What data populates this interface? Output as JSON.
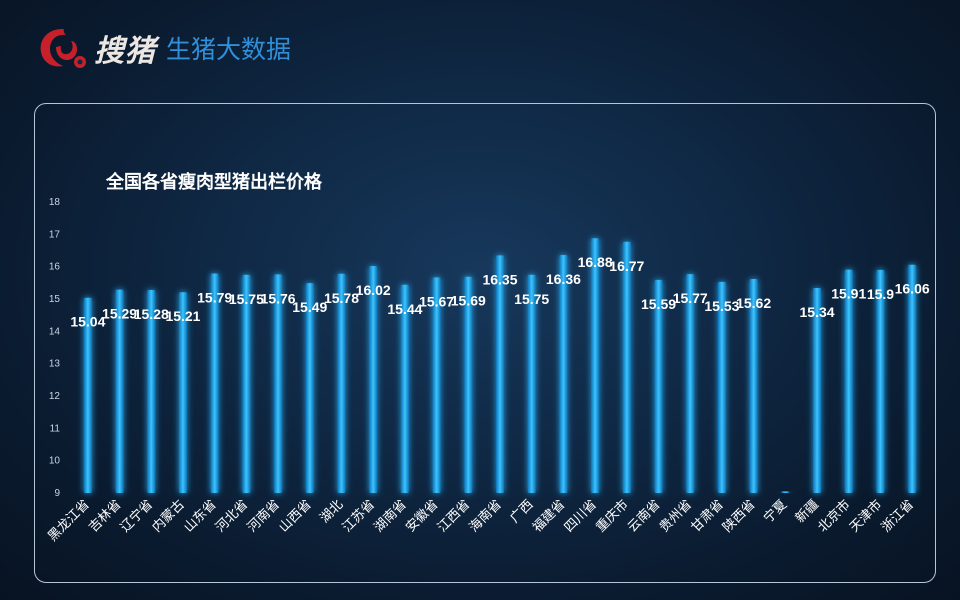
{
  "brand": {
    "name": "搜猪",
    "subtitle": "生猪大数据"
  },
  "colors": {
    "bar": "#1aa8f0",
    "label": "#ffffff",
    "tick": "#c8d6e6",
    "accent": "#2f8fd8",
    "logo": "#c8202a"
  },
  "chart_data": {
    "type": "bar",
    "title": "全国各省瘦肉型猪出栏价格",
    "xlabel": "",
    "ylabel": "",
    "ylim": [
      9,
      18
    ],
    "yticks": [
      9,
      10,
      11,
      12,
      13,
      14,
      15,
      16,
      17,
      18
    ],
    "grid": false,
    "legend": "none",
    "categories": [
      "黑龙江省",
      "吉林省",
      "辽宁省",
      "内蒙古",
      "山东省",
      "河北省",
      "河南省",
      "山西省",
      "湖北",
      "江苏省",
      "湖南省",
      "安徽省",
      "江西省",
      "海南省",
      "广西",
      "福建省",
      "四川省",
      "重庆市",
      "云南省",
      "贵州省",
      "甘肃省",
      "陕西省",
      "宁夏",
      "新疆",
      "北京市",
      "天津市",
      "浙江省"
    ],
    "values": [
      15.04,
      15.29,
      15.28,
      15.21,
      15.79,
      15.75,
      15.76,
      15.49,
      15.78,
      16.02,
      15.44,
      15.67,
      15.69,
      16.35,
      15.75,
      16.36,
      16.88,
      16.77,
      15.59,
      15.77,
      15.53,
      15.62,
      9.05,
      15.34,
      15.91,
      15.9,
      16.06
    ],
    "data_labels": [
      "15.04",
      "15.29",
      "15.28",
      "15.21",
      "15.79",
      "15.75",
      "15.76",
      "15.49",
      "15.78",
      "16.02",
      "15.44",
      "15.67",
      "15.69",
      "16.35",
      "15.75",
      "16.36",
      "16.88",
      "16.77",
      "15.59",
      "15.77",
      "15.53",
      "15.62",
      "",
      "15.34",
      "15.91",
      "15.9",
      "16.06"
    ]
  }
}
